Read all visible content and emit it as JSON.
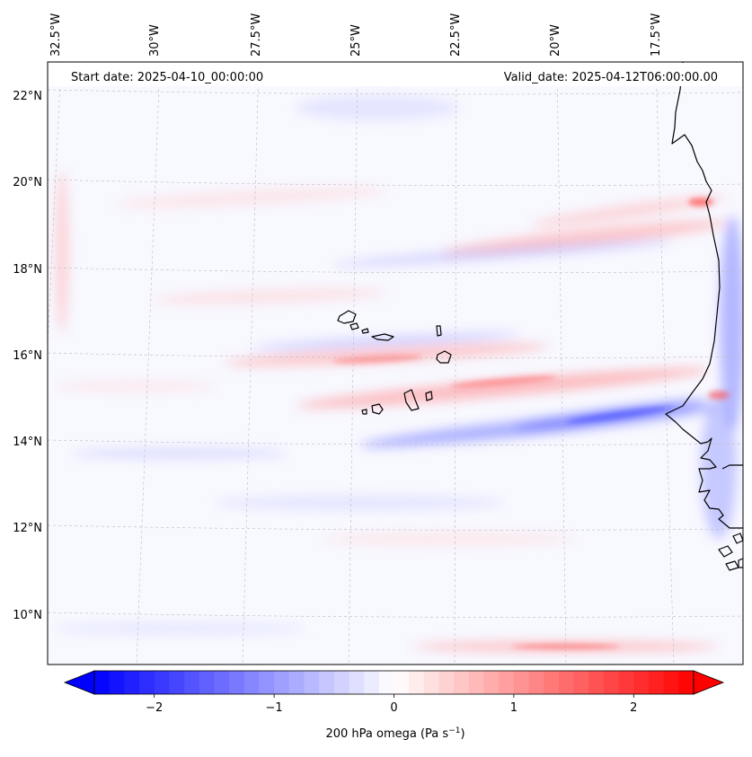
{
  "map": {
    "start_date": "Start date: 2025-04-10_00:00:00",
    "valid_date": "Valid_date: 2025-04-12T06:00:00.00",
    "lon_labels": [
      "32.5°W",
      "30°W",
      "27.5°W",
      "25°W",
      "22.5°W",
      "20°W",
      "17.5°W"
    ],
    "lat_labels": [
      "22°N",
      "20°N",
      "18°N",
      "16°N",
      "14°N",
      "12°N",
      "10°N"
    ],
    "variable": "200 hPa omega",
    "units": "Pa s",
    "units_exponent": "−1",
    "colormap": "bwr",
    "colors": {
      "negative": "#0000ff",
      "zero": "#ffffff",
      "positive": "#ff0000",
      "coast": "#000000",
      "grid": "#bbbbbb"
    }
  },
  "colorbar": {
    "min": -2.5,
    "max": 2.5,
    "ticks": [
      -2,
      -1,
      0,
      1,
      2
    ],
    "tick_labels": [
      "−2",
      "−1",
      "0",
      "1",
      "2"
    ],
    "extend": "both"
  }
}
